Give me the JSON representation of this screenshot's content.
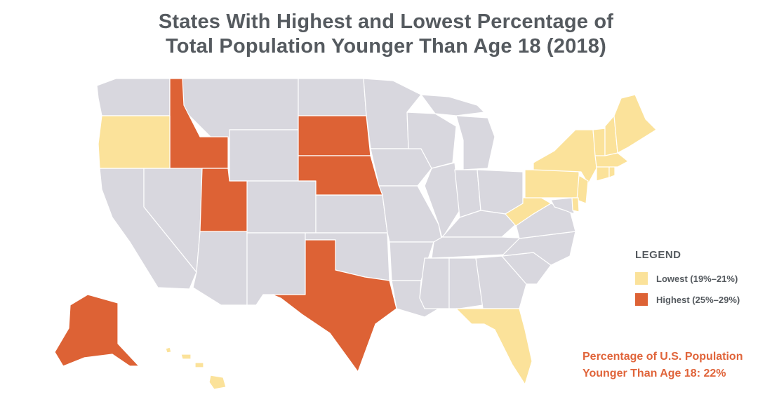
{
  "title_line1": "States With Highest and Lowest Percentage of",
  "title_line2": "Total Population Younger Than Age 18 (2018)",
  "legend": {
    "title": "LEGEND",
    "lowest_label": "Lowest (19%–21%)",
    "highest_label": "Highest (25%–29%)"
  },
  "colors": {
    "neutral": "#d8d7de",
    "lowest": "#fbe29a",
    "highest": "#dd6235",
    "border": "#ffffff",
    "note_text": "#e0643a"
  },
  "note_line1": "Percentage of U.S. Population",
  "note_line2": "Younger Than Age 18: 22%",
  "categories": {
    "highest": [
      "Idaho",
      "Utah",
      "South Dakota",
      "Nebraska",
      "Texas",
      "Alaska"
    ],
    "lowest": [
      "Oregon",
      "Florida",
      "West Virginia",
      "Pennsylvania",
      "New York",
      "New Jersey",
      "Delaware",
      "Connecticut",
      "Rhode Island",
      "Massachusetts",
      "Vermont",
      "New Hampshire",
      "Maine",
      "Hawaii"
    ]
  }
}
